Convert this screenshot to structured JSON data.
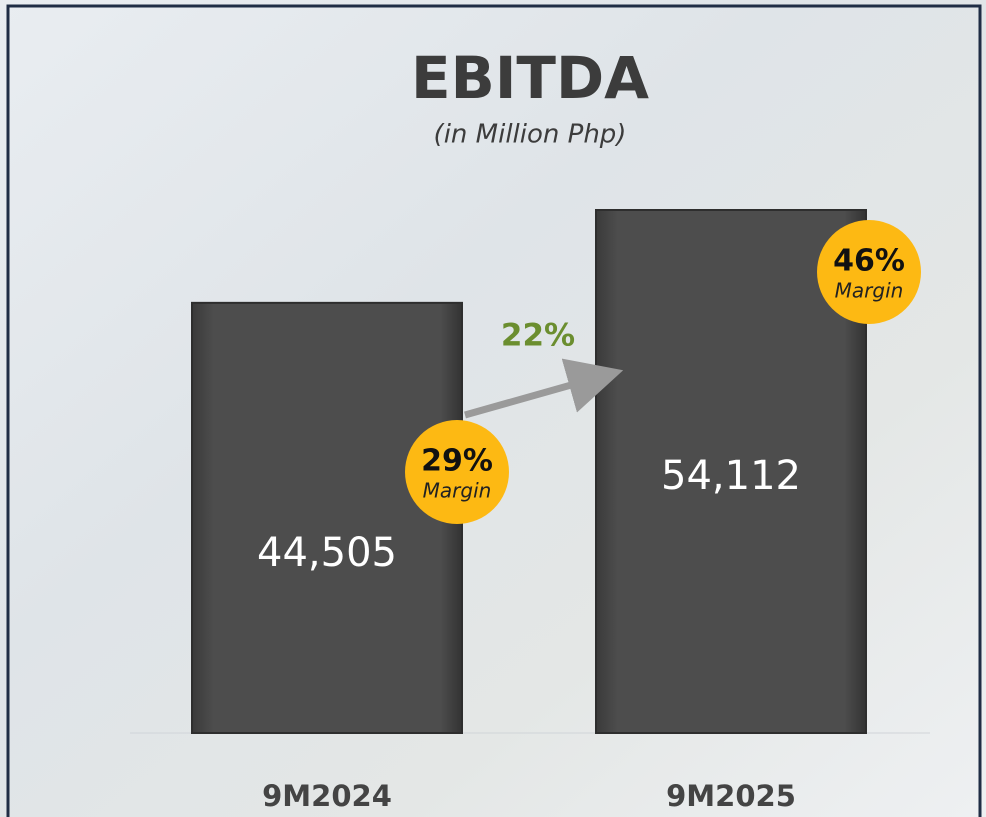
{
  "chart_data": {
    "type": "bar",
    "title": "EBITDA",
    "subtitle": "(in Million Php)",
    "categories": [
      "9M2024",
      "9M2025"
    ],
    "values": [
      44505,
      54112
    ],
    "value_labels": [
      "44,505",
      "54,112"
    ],
    "color": "#4a4a4a",
    "margins": [
      29,
      46
    ],
    "margin_labels": [
      "29%",
      "46%"
    ],
    "margin_caption": "Margin",
    "margin_color": "#fdb913",
    "growth": 22,
    "growth_label": "22%",
    "growth_color": "#6b8e2f"
  }
}
